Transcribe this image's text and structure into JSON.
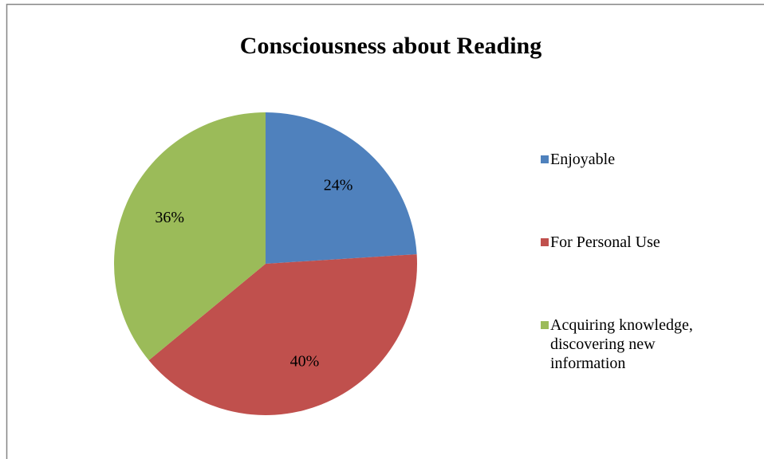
{
  "chart_data": {
    "type": "pie",
    "title": "Consciousness about Reading",
    "categories": [
      "Enjoyable",
      "For Personal Use",
      "Acquiring knowledge, discovering new information"
    ],
    "values": [
      24,
      40,
      36
    ],
    "value_labels": [
      "24%",
      "40%",
      "36%"
    ],
    "colors": [
      "#4f81bd",
      "#c0504d",
      "#9bbb59"
    ],
    "legend": "right"
  }
}
